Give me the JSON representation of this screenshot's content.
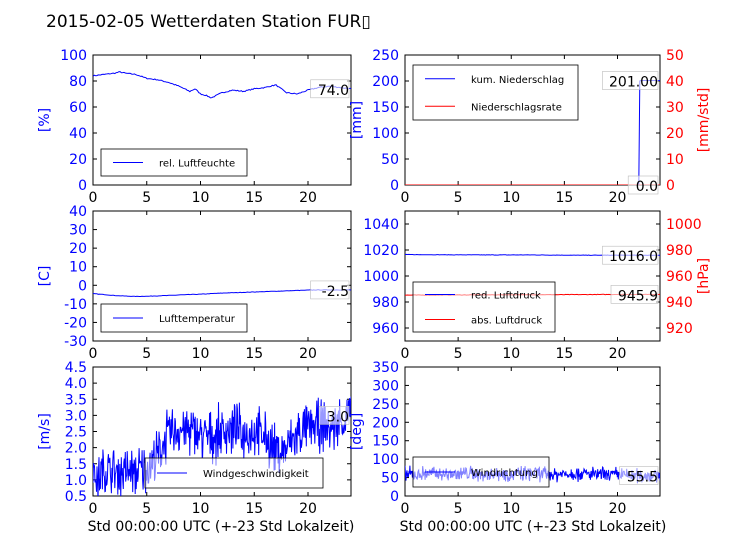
{
  "figure": {
    "title": "2015-02-05 Wetterdaten Station FUR▯"
  },
  "chart_data": [
    {
      "id": "humidity",
      "type": "line",
      "xlim": [
        0,
        24
      ],
      "xticks": [
        0,
        5,
        10,
        15,
        20
      ],
      "ylim": [
        0,
        100
      ],
      "yticks": [
        0,
        20,
        40,
        60,
        80,
        100
      ],
      "ytick_color": "#0000ff",
      "ylabel": "[%]",
      "ylabel_color": "#0000ff",
      "grid": false,
      "legend_loc": "lower-left",
      "last_label": "74.0",
      "series": [
        {
          "name": "rel. Luftfeuchte",
          "color": "#0000ff",
          "noise": 0.4,
          "x": [
            0,
            1,
            2,
            2.5,
            3,
            4,
            5,
            6,
            7,
            8,
            8.5,
            9,
            9.5,
            10,
            10.5,
            11,
            11.5,
            12,
            13,
            14,
            15,
            16,
            17,
            17.5,
            18,
            19,
            20,
            21,
            22,
            23,
            24
          ],
          "y": [
            84,
            85,
            86,
            87,
            86,
            85,
            82,
            81,
            79,
            76,
            74,
            72,
            74,
            70,
            69,
            67,
            69,
            71,
            73,
            72,
            74,
            75,
            77,
            74,
            71,
            70,
            73,
            75,
            76,
            75,
            74
          ]
        }
      ]
    },
    {
      "id": "precipitation",
      "type": "line",
      "xlim": [
        0,
        24
      ],
      "xticks": [
        0,
        5,
        10,
        15,
        20
      ],
      "ylim": [
        0,
        250
      ],
      "yticks": [
        0,
        50,
        100,
        150,
        200,
        250
      ],
      "ytick_color": "#0000ff",
      "ylabel": "[mm]",
      "ylabel_color": "#0000ff",
      "y2lim": [
        0,
        50
      ],
      "y2ticks": [
        0,
        10,
        20,
        30,
        40,
        50
      ],
      "y2tick_color": "#ff0000",
      "y2label": "[mm/std]",
      "y2label_color": "#ff0000",
      "grid": false,
      "legend_loc": "upper-left",
      "last_label": "201.00",
      "last_label2": "0.0",
      "series": [
        {
          "name": "kum. Niederschlag",
          "color": "#0000ff",
          "axis": "left",
          "noise": 0,
          "x": [
            0,
            22.0,
            22.1,
            22.2,
            24
          ],
          "y": [
            0,
            0,
            200,
            201,
            201
          ]
        },
        {
          "name": "Niederschlagsrate",
          "color": "#ff0000",
          "axis": "right",
          "noise": 0,
          "x": [
            0,
            24
          ],
          "y": [
            0,
            0
          ]
        }
      ]
    },
    {
      "id": "temperature",
      "type": "line",
      "xlim": [
        0,
        24
      ],
      "xticks": [
        0,
        5,
        10,
        15,
        20
      ],
      "ylim": [
        -30,
        40
      ],
      "yticks": [
        -30,
        -20,
        -10,
        0,
        10,
        20,
        30,
        40
      ],
      "ytick_color": "#0000ff",
      "ylabel": "[C]",
      "ylabel_color": "#0000ff",
      "grid": false,
      "legend_loc": "lower-left",
      "last_label": "-2.5",
      "series": [
        {
          "name": "Lufttemperatur",
          "color": "#0000ff",
          "noise": 0.1,
          "x": [
            0,
            1,
            2,
            3,
            4,
            5,
            6,
            7,
            8,
            9,
            10,
            11,
            12,
            13,
            14,
            15,
            16,
            17,
            18,
            19,
            20,
            21,
            22,
            23,
            24
          ],
          "y": [
            -4.5,
            -5,
            -5.5,
            -5.8,
            -6,
            -5.9,
            -5.7,
            -5.5,
            -5.2,
            -5,
            -4.8,
            -4.5,
            -4.2,
            -4,
            -3.8,
            -3.6,
            -3.4,
            -3.2,
            -3,
            -2.8,
            -2.6,
            -2.5,
            -2.5,
            -2.5,
            -2.5
          ]
        }
      ]
    },
    {
      "id": "pressure",
      "type": "line",
      "xlim": [
        0,
        24
      ],
      "xticks": [
        0,
        5,
        10,
        15,
        20
      ],
      "ylim": [
        950,
        1050
      ],
      "yticks": [
        960,
        980,
        1000,
        1020,
        1040
      ],
      "ytick_color": "#0000ff",
      "ylabel": "",
      "ylabel_color": "#0000ff",
      "y2lim": [
        910,
        1010
      ],
      "y2ticks": [
        920,
        940,
        960,
        980,
        1000
      ],
      "y2tick_color": "#ff0000",
      "y2label": "[hPa]",
      "y2label_color": "#ff0000",
      "grid": false,
      "legend_loc": "lower-left",
      "last_label": "1016.0",
      "last_label2": "945.9",
      "series": [
        {
          "name": "red. Luftdruck",
          "color": "#0000ff",
          "axis": "left",
          "noise": 0.15,
          "x": [
            0,
            4,
            8,
            12,
            16,
            20,
            24
          ],
          "y": [
            1016.5,
            1016.3,
            1016.2,
            1016.2,
            1016.0,
            1016.0,
            1016.0
          ]
        },
        {
          "name": "abs. Luftdruck",
          "color": "#ff0000",
          "axis": "right",
          "noise": 0.15,
          "x": [
            0,
            4,
            8,
            12,
            16,
            20,
            24
          ],
          "y": [
            945.3,
            945.4,
            945.5,
            945.6,
            945.7,
            945.8,
            945.9
          ]
        }
      ]
    },
    {
      "id": "windspeed",
      "type": "line",
      "xlim": [
        0,
        24
      ],
      "xticks": [
        0,
        5,
        10,
        15,
        20
      ],
      "ylim": [
        0.5,
        4.5
      ],
      "yticks": [
        0.5,
        1.0,
        1.5,
        2.0,
        2.5,
        3.0,
        3.5,
        4.0,
        4.5
      ],
      "ytick_format": 1,
      "ytick_color": "#0000ff",
      "ylabel": "[m/s]",
      "ylabel_color": "#0000ff",
      "grid": false,
      "legend_loc": "lower-center",
      "last_label": "3.0",
      "series": [
        {
          "name": "Windgeschwindigkeit",
          "color": "#0000ff",
          "noise": 0.7,
          "dense": true,
          "x": [
            0,
            0.5,
            1,
            2,
            3,
            4,
            5,
            6,
            6.5,
            7,
            8,
            9,
            10,
            11,
            12,
            13,
            14,
            15,
            16,
            17,
            17.5,
            18,
            19,
            20,
            21,
            22,
            23,
            24
          ],
          "y": [
            1.2,
            1.0,
            1.3,
            1.2,
            1.3,
            1.2,
            1.4,
            1.7,
            2.1,
            2.4,
            2.6,
            2.5,
            2.4,
            2.3,
            2.5,
            2.6,
            2.4,
            2.5,
            2.3,
            1.9,
            1.8,
            2.0,
            2.4,
            2.6,
            2.7,
            2.6,
            2.8,
            3.0
          ]
        }
      ]
    },
    {
      "id": "winddirection",
      "type": "line",
      "xlim": [
        0,
        24
      ],
      "xticks": [
        0,
        5,
        10,
        15,
        20
      ],
      "ylim": [
        0,
        350
      ],
      "yticks": [
        0,
        50,
        100,
        150,
        200,
        250,
        300,
        350
      ],
      "ytick_color": "#0000ff",
      "ylabel": "[deg]",
      "ylabel_color": "#0000ff",
      "grid": false,
      "legend_loc": "lower-left",
      "last_label": "55.5",
      "series": [
        {
          "name": "Windrichtung",
          "color": "#0000ff",
          "noise": 18,
          "dense": true,
          "x": [
            0,
            1,
            2,
            3,
            4,
            5,
            6,
            7,
            8,
            9,
            10,
            11,
            12,
            13,
            14,
            15,
            16,
            17,
            18,
            19,
            20,
            21,
            22,
            23,
            24
          ],
          "y": [
            60,
            58,
            62,
            60,
            58,
            60,
            62,
            58,
            60,
            62,
            58,
            60,
            62,
            60,
            58,
            60,
            62,
            60,
            58,
            56,
            58,
            56,
            55,
            56,
            55.5
          ]
        }
      ]
    }
  ],
  "xlabels": [
    "Std 00:00:00 UTC (+-23 Std Lokalzeit)",
    "Std 00:00:00 UTC (+-23 Std Lokalzeit)"
  ]
}
